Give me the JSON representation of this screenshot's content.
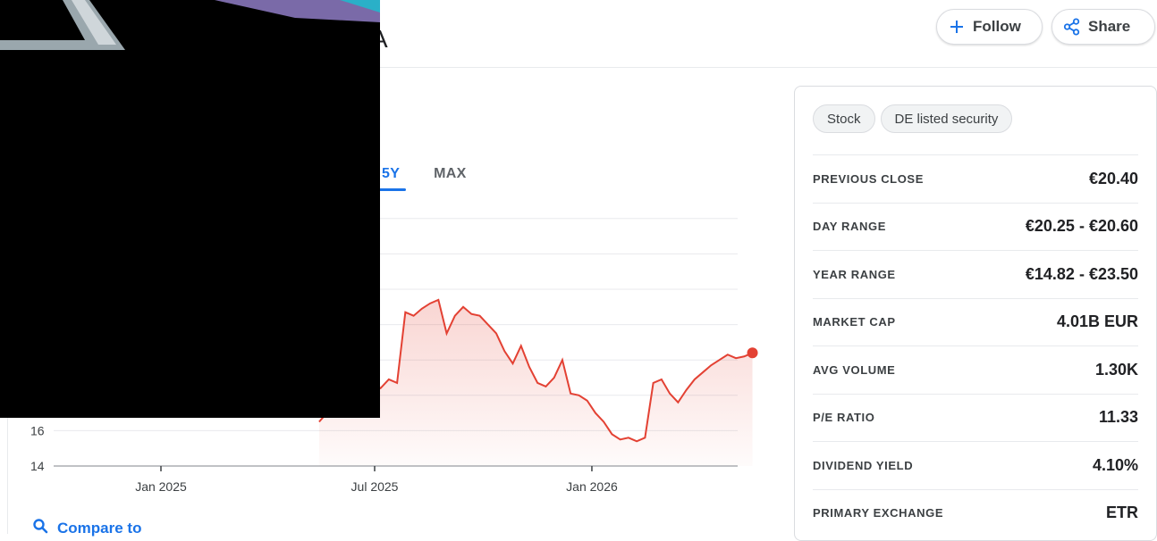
{
  "header": {
    "title_fragment": "A",
    "follow_label": "Follow",
    "share_label": "Share"
  },
  "range_tabs": [
    {
      "label": "5Y",
      "active": true
    },
    {
      "label": "MAX",
      "active": false
    }
  ],
  "chart_data": {
    "type": "line",
    "yticks": [
      14,
      16
    ],
    "ylim": [
      14,
      28
    ],
    "xticks": [
      {
        "label": "Jan 2025",
        "date": "2025-01-01"
      },
      {
        "label": "Jul 2025",
        "date": "2025-07-01"
      },
      {
        "label": "Jan 2026",
        "date": "2026-01-01"
      }
    ],
    "line_color": "#e34133",
    "grid": true,
    "visible_series": {
      "x": [
        "2025-05-15",
        "2025-06-01",
        "2025-06-08",
        "2025-06-15",
        "2025-06-22",
        "2025-06-29",
        "2025-07-06",
        "2025-07-13",
        "2025-07-20",
        "2025-07-27",
        "2025-08-03",
        "2025-08-10",
        "2025-08-17",
        "2025-08-24",
        "2025-08-31",
        "2025-09-07",
        "2025-09-14",
        "2025-09-21",
        "2025-09-28",
        "2025-10-05",
        "2025-10-12",
        "2025-10-19",
        "2025-10-26",
        "2025-11-02",
        "2025-11-09",
        "2025-11-16",
        "2025-11-23",
        "2025-11-30",
        "2025-12-07",
        "2025-12-14",
        "2025-12-21",
        "2025-12-28",
        "2026-01-04",
        "2026-01-11",
        "2026-01-18",
        "2026-01-25",
        "2026-02-01",
        "2026-02-08",
        "2026-02-15",
        "2026-02-22",
        "2026-03-01",
        "2026-03-08",
        "2026-03-15",
        "2026-03-22",
        "2026-03-29",
        "2026-04-05",
        "2026-04-12",
        "2026-04-19",
        "2026-04-26",
        "2026-05-03",
        "2026-05-10",
        "2026-05-17"
      ],
      "y": [
        16.5,
        17.8,
        18.1,
        18.6,
        19.0,
        18.7,
        18.4,
        18.9,
        18.7,
        22.7,
        22.5,
        22.9,
        23.2,
        23.4,
        21.5,
        22.5,
        23.0,
        22.6,
        22.5,
        22.0,
        21.5,
        20.5,
        19.8,
        20.8,
        19.6,
        18.7,
        18.5,
        19.0,
        20.0,
        18.1,
        18.0,
        17.7,
        17.0,
        16.5,
        15.8,
        15.5,
        15.6,
        15.4,
        15.6,
        18.7,
        18.9,
        18.1,
        17.6,
        18.3,
        18.9,
        19.3,
        19.7,
        20.0,
        20.3,
        20.1,
        20.2,
        20.4
      ]
    }
  },
  "compare": {
    "label": "Compare to"
  },
  "chips": [
    "Stock",
    "DE listed security"
  ],
  "stats": [
    {
      "label": "PREVIOUS CLOSE",
      "value": "€20.40"
    },
    {
      "label": "DAY RANGE",
      "value": "€20.25 - €20.60"
    },
    {
      "label": "YEAR RANGE",
      "value": "€14.82 - €23.50"
    },
    {
      "label": "MARKET CAP",
      "value": "4.01B EUR"
    },
    {
      "label": "AVG VOLUME",
      "value": "1.30K"
    },
    {
      "label": "P/E RATIO",
      "value": "11.33"
    },
    {
      "label": "DIVIDEND YIELD",
      "value": "4.10%"
    },
    {
      "label": "PRIMARY EXCHANGE",
      "value": "ETR"
    }
  ]
}
